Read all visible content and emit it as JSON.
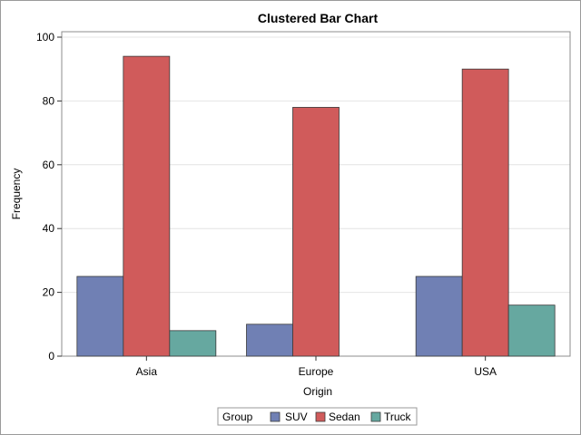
{
  "chart_data": {
    "type": "bar",
    "title": "Clustered Bar Chart",
    "xlabel": "Origin",
    "ylabel": "Frequency",
    "categories": [
      "Asia",
      "Europe",
      "USA"
    ],
    "series": [
      {
        "name": "SUV",
        "values": [
          25,
          10,
          25
        ],
        "color": "#7080B4"
      },
      {
        "name": "Sedan",
        "values": [
          94,
          78,
          90
        ],
        "color": "#D05B5B"
      },
      {
        "name": "Truck",
        "values": [
          8,
          0,
          16
        ],
        "color": "#66A8A0"
      }
    ],
    "ylim": [
      0,
      100
    ],
    "yticks": [
      0,
      20,
      40,
      60,
      80,
      100
    ],
    "grid": true,
    "legend": {
      "title": "Group",
      "position": "bottom-center"
    }
  }
}
